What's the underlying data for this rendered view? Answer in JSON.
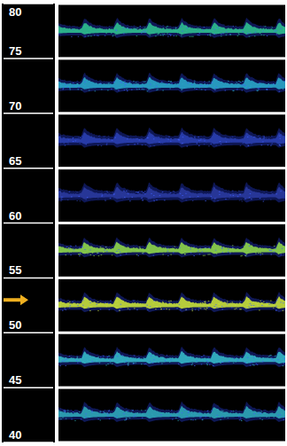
{
  "chart_data": {
    "type": "multigate_doppler",
    "ylim": [
      40,
      80
    ],
    "yticks": [
      80,
      75,
      70,
      65,
      60,
      55,
      50,
      45,
      40
    ],
    "cardiac_cycles": 7,
    "gates": [
      {
        "from": 80,
        "to": 75,
        "color": "#2fbf8f"
      },
      {
        "from": 75,
        "to": 70,
        "color": "#2aa6c9"
      },
      {
        "from": 70,
        "to": 65,
        "color": "#2a3fb0"
      },
      {
        "from": 65,
        "to": 60,
        "color": "#2a3a9e"
      },
      {
        "from": 60,
        "to": 55,
        "color": "#8fd64a"
      },
      {
        "from": 55,
        "to": 50,
        "color": "#c8e03a"
      },
      {
        "from": 50,
        "to": 45,
        "color": "#35b8c8"
      },
      {
        "from": 45,
        "to": 40,
        "color": "#2fa7b8"
      }
    ],
    "annotations": [
      {
        "value": 53,
        "color": "#f0b020"
      }
    ]
  }
}
